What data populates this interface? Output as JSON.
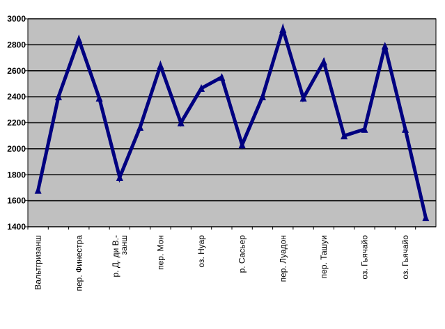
{
  "chart_data": {
    "type": "line",
    "categories": [
      "Вальтгризанш",
      null,
      "пер. Финестра",
      null,
      "р. Д. ди В.-\nзанш",
      null,
      "пер. Мон",
      null,
      "оз. Нуар",
      null,
      "р. Сасьер",
      null,
      "пер. Луадон",
      null,
      "пер. Ташуи",
      null,
      "оз. Гьячайо",
      null,
      "оз. Гьячайо",
      null
    ],
    "series": [
      {
        "color": "#000080",
        "marker": "triangle",
        "values": [
          1680,
          2400,
          2840,
          2390,
          1780,
          2165,
          2640,
          2200,
          2465,
          2550,
          2030,
          2400,
          2920,
          2390,
          2670,
          2100,
          2150,
          2790,
          2150,
          1470
        ]
      }
    ],
    "ylim": [
      1400,
      3000
    ],
    "yticks": [
      1400,
      1600,
      1800,
      2000,
      2200,
      2400,
      2600,
      2800,
      3000
    ],
    "grid": true,
    "plot_background": "#c0c0c0"
  }
}
